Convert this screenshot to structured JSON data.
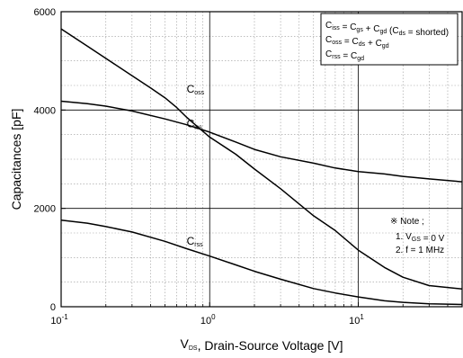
{
  "chart_data": {
    "type": "line",
    "title": "",
    "xlabel": {
      "main": "V",
      "sub": "DS",
      "rest": ", Drain-Source Voltage [V]"
    },
    "ylabel": "Capacitances [pF]",
    "xscale": "log",
    "xlim": [
      0.1,
      50
    ],
    "ylim": [
      0,
      6000
    ],
    "x_ticks": [
      {
        "value": 0.1,
        "base": "10",
        "exp": "-1"
      },
      {
        "value": 1,
        "base": "10",
        "exp": "0"
      },
      {
        "value": 10,
        "base": "10",
        "exp": "1"
      }
    ],
    "y_ticks": [
      {
        "value": 0,
        "label": "0"
      },
      {
        "value": 2000,
        "label": "2000"
      },
      {
        "value": 4000,
        "label": "4000"
      },
      {
        "value": 6000,
        "label": "6000"
      }
    ],
    "grid": true,
    "series": [
      {
        "label_main": "C",
        "label_sub": "oss",
        "label_at": [
          0.85,
          4350
        ],
        "points": [
          [
            0.1,
            5650
          ],
          [
            0.15,
            5300
          ],
          [
            0.2,
            5050
          ],
          [
            0.3,
            4700
          ],
          [
            0.4,
            4450
          ],
          [
            0.5,
            4250
          ],
          [
            0.6,
            4050
          ],
          [
            0.7,
            3850
          ],
          [
            0.8,
            3700
          ],
          [
            1,
            3450
          ],
          [
            1.5,
            3100
          ],
          [
            2,
            2800
          ],
          [
            3,
            2400
          ],
          [
            5,
            1850
          ],
          [
            7,
            1550
          ],
          [
            10,
            1150
          ],
          [
            15,
            800
          ],
          [
            20,
            600
          ],
          [
            30,
            430
          ],
          [
            50,
            360
          ]
        ]
      },
      {
        "label_main": "C",
        "label_sub": "iss",
        "label_at": [
          0.85,
          3650
        ],
        "points": [
          [
            0.1,
            4180
          ],
          [
            0.15,
            4130
          ],
          [
            0.2,
            4080
          ],
          [
            0.3,
            3980
          ],
          [
            0.5,
            3820
          ],
          [
            0.7,
            3700
          ],
          [
            1,
            3550
          ],
          [
            1.5,
            3350
          ],
          [
            2,
            3200
          ],
          [
            3,
            3050
          ],
          [
            5,
            2920
          ],
          [
            7,
            2820
          ],
          [
            10,
            2750
          ],
          [
            15,
            2700
          ],
          [
            20,
            2650
          ],
          [
            30,
            2600
          ],
          [
            50,
            2540
          ]
        ]
      },
      {
        "label_main": "C",
        "label_sub": "rss",
        "label_at": [
          0.85,
          1260
        ],
        "points": [
          [
            0.1,
            1760
          ],
          [
            0.15,
            1700
          ],
          [
            0.2,
            1630
          ],
          [
            0.3,
            1520
          ],
          [
            0.5,
            1330
          ],
          [
            0.7,
            1180
          ],
          [
            1,
            1030
          ],
          [
            1.5,
            850
          ],
          [
            2,
            720
          ],
          [
            3,
            560
          ],
          [
            5,
            370
          ],
          [
            7,
            280
          ],
          [
            10,
            200
          ],
          [
            15,
            120
          ],
          [
            20,
            90
          ],
          [
            30,
            60
          ],
          [
            50,
            45
          ]
        ]
      }
    ],
    "legend": {
      "position": "top-right",
      "rows": [
        [
          [
            "C",
            ""
          ],
          [
            "iss",
            "sub"
          ],
          [
            " = C",
            ""
          ],
          [
            "gs",
            "sub"
          ],
          [
            " + C",
            ""
          ],
          [
            "gd",
            "sub"
          ],
          [
            " (C",
            ""
          ],
          [
            "ds",
            "sub"
          ],
          [
            " = shorted)",
            ""
          ]
        ],
        [
          [
            "C",
            ""
          ],
          [
            "oss",
            "sub"
          ],
          [
            " = C",
            ""
          ],
          [
            "ds",
            "sub"
          ],
          [
            " + C",
            ""
          ],
          [
            "gd",
            "sub"
          ]
        ],
        [
          [
            "C",
            ""
          ],
          [
            "rss",
            "sub"
          ],
          [
            " = C",
            ""
          ],
          [
            "gd",
            "sub"
          ]
        ]
      ]
    },
    "note": {
      "title": "※ Note ;",
      "items": [
        [
          [
            "1. V",
            ""
          ],
          [
            "GS",
            "sub"
          ],
          [
            " = 0 V",
            ""
          ]
        ],
        [
          [
            "2. f = 1 MHz",
            ""
          ]
        ]
      ]
    }
  }
}
